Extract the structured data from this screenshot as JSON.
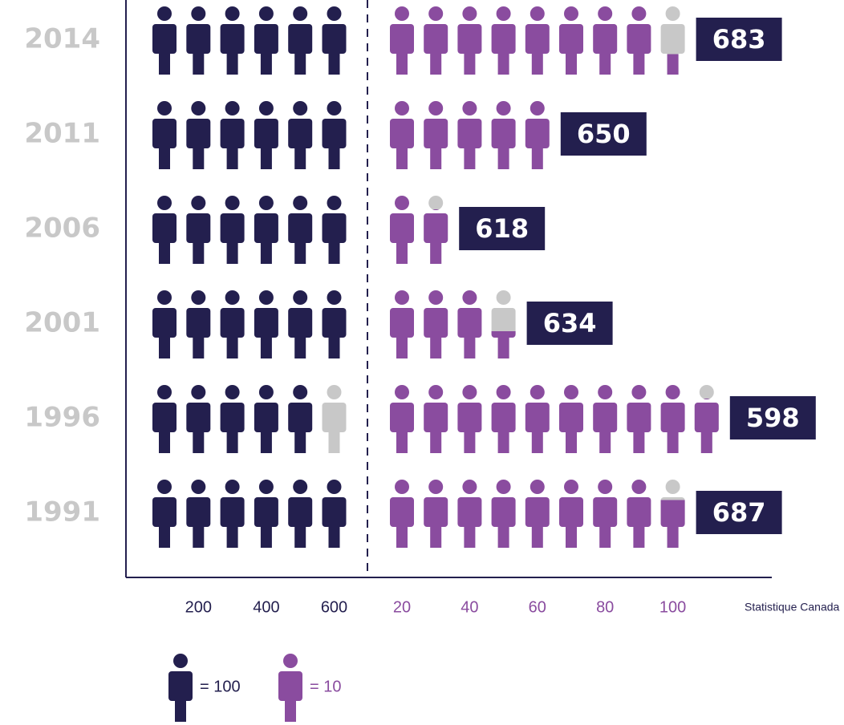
{
  "chart_data": {
    "type": "pictogram",
    "categories": [
      "2014",
      "2011",
      "2006",
      "2001",
      "1996",
      "1991"
    ],
    "values": [
      683,
      650,
      618,
      634,
      598,
      687
    ],
    "xticks": [
      200,
      400,
      600
    ],
    "x2ticks": [
      20,
      40,
      60,
      80,
      100
    ],
    "units": [
      {
        "label": "= 100",
        "value": 100,
        "color": "#231f4e"
      },
      {
        "label": "= 10",
        "value": 10,
        "color": "#8a4c9f"
      }
    ],
    "empty_color": "#c8c8c8",
    "source": "Statistique Canada"
  }
}
